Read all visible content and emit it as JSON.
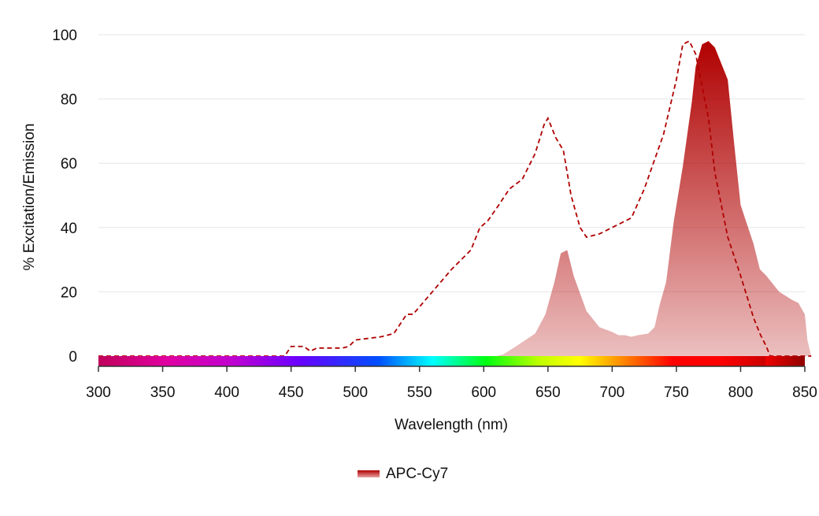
{
  "chart_data": {
    "type": "area",
    "xlabel": "Wavelength (nm)",
    "ylabel": "% Excitation/Emission",
    "xlim": [
      300,
      855
    ],
    "ylim": [
      0,
      100
    ],
    "xticks": [
      300,
      350,
      400,
      450,
      500,
      550,
      600,
      650,
      700,
      750,
      800,
      850
    ],
    "yticks": [
      0,
      20,
      40,
      60,
      80,
      100
    ],
    "grid": true,
    "legend_position": "bottom",
    "color": "#b00000",
    "series": [
      {
        "name": "APC-Cy7",
        "kind": "excitation",
        "style": "dashed",
        "x": [
          300,
          445,
          450,
          460,
          465,
          470,
          490,
          495,
          500,
          510,
          520,
          530,
          540,
          545,
          560,
          575,
          590,
          597,
          603,
          610,
          620,
          630,
          640,
          647,
          650,
          656,
          662,
          668,
          675,
          680,
          690,
          700,
          710,
          715,
          725,
          740,
          750,
          755,
          760,
          765,
          775,
          780,
          790,
          800,
          810,
          815,
          820,
          823,
          855
        ],
        "y": [
          0,
          0,
          3,
          3,
          1.5,
          2.5,
          2.5,
          3,
          5,
          5.5,
          6,
          7,
          13,
          13,
          20,
          27,
          33,
          40,
          42,
          46,
          52,
          55,
          63,
          72,
          74,
          68,
          64,
          50,
          40,
          37,
          38,
          40,
          42,
          43,
          52,
          69,
          86,
          97,
          98,
          94,
          74,
          57,
          37,
          25,
          12,
          7,
          3,
          0,
          0
        ]
      },
      {
        "name": "APC-Cy7",
        "kind": "emission",
        "style": "filled",
        "x": [
          610,
          615,
          625,
          640,
          648,
          655,
          660,
          665,
          670,
          680,
          690,
          700,
          705,
          710,
          715,
          720,
          728,
          733,
          737,
          742,
          748,
          755,
          762,
          765,
          770,
          775,
          780,
          785,
          790,
          795,
          800,
          805,
          810,
          815,
          820,
          830,
          840,
          845,
          850,
          852,
          855
        ],
        "y": [
          0,
          0.5,
          3,
          7,
          13,
          23,
          32,
          33,
          25,
          14,
          9,
          7.5,
          6.5,
          6.5,
          6,
          6.5,
          7,
          9,
          16,
          23,
          42,
          59,
          79,
          90,
          97,
          98,
          96,
          91,
          86,
          66,
          47,
          41,
          35,
          27,
          25,
          20,
          17.5,
          16.5,
          13,
          5,
          0
        ]
      }
    ]
  }
}
